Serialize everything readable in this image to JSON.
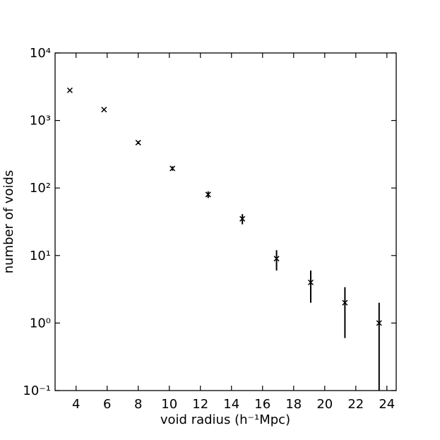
{
  "chart_data": {
    "type": "scatter",
    "xlabel": "void radius (h⁻¹Mpc)",
    "ylabel": "number of voids",
    "log_y": true,
    "color": "#000000",
    "xlim": [
      2.65,
      24.6
    ],
    "ylim": [
      0.1,
      10000
    ],
    "xticks": [
      4,
      6,
      8,
      10,
      12,
      14,
      16,
      18,
      20,
      22,
      24
    ],
    "yticks": [
      {
        "value": 0.1,
        "label": "10⁻¹"
      },
      {
        "value": 1,
        "label": "10⁰"
      },
      {
        "value": 10,
        "label": "10¹"
      },
      {
        "value": 100,
        "label": "10²"
      },
      {
        "value": 1000,
        "label": "10³"
      },
      {
        "value": 10000,
        "label": "10⁴"
      }
    ],
    "x": [
      3.6,
      5.8,
      8.0,
      10.2,
      12.5,
      14.7,
      16.9,
      19.1,
      21.3,
      23.5
    ],
    "values": [
      2800,
      1450,
      470,
      195,
      80,
      35,
      9,
      4,
      2,
      1
    ],
    "errors": [
      53,
      38,
      22,
      14,
      9,
      6,
      3,
      2,
      1.4,
      1
    ]
  }
}
